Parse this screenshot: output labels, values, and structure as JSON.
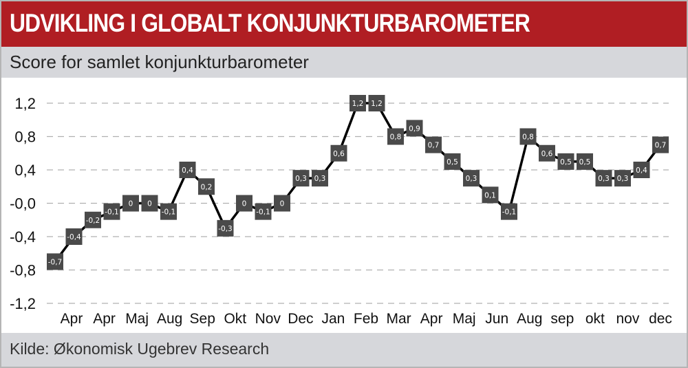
{
  "header": {
    "title": "UDVIKLING I GLOBALT KONJUNKTURBAROMETER",
    "subtitle": "Score for samlet konjunkturbarometer"
  },
  "footer": {
    "source": "Kilde: Økonomisk Ugebrev Research"
  },
  "colors": {
    "title_bar": "#b01e23",
    "band": "#d6d7db",
    "line": "#000000",
    "marker": "#4a4a4a",
    "grid": "#b0b0b0"
  },
  "chart_data": {
    "type": "line",
    "title": "UDVIKLING I GLOBALT KONJUNKTURBAROMETER",
    "subtitle": "Score for samlet konjunkturbarometer",
    "ylim": [
      -1.2,
      1.2
    ],
    "yticks": [
      1.2,
      0.8,
      0.4,
      0.0,
      -0.4,
      -0.8,
      -1.2
    ],
    "ytick_labels": [
      "1,2",
      "0,8",
      "0,4",
      "-0,0",
      "-0,4",
      "-0,8",
      "-1,2"
    ],
    "grid": true,
    "category_labels": [
      "Apr",
      "Apr",
      "Maj",
      "Aug",
      "Sep",
      "Okt",
      "Nov",
      "Dec",
      "Jan",
      "Feb",
      "Mar",
      "Apr",
      "Maj",
      "Jun",
      "Aug",
      "sep",
      "okt",
      "nov",
      "dec"
    ],
    "series": [
      {
        "values": [
          -0.7,
          -0.4,
          -0.2,
          -0.1,
          0,
          0,
          -0.1,
          0.4,
          0.2,
          -0.3,
          0,
          -0.1,
          0,
          0.3,
          0.3,
          0.6,
          1.2,
          1.2,
          0.8,
          0.9,
          0.7,
          0.5,
          0.3,
          0.1,
          -0.1,
          0.8,
          0.6,
          0.5,
          0.5,
          0.3,
          0.3,
          0.4,
          0.7
        ],
        "labels": [
          "-0,7",
          "-0,4",
          "-0,2",
          "-0,1",
          "0",
          "0",
          "-0,1",
          "0,4",
          "0,2",
          "-0,3",
          "0",
          "-0,1",
          "0",
          "0,3",
          "0,3",
          "0,6",
          "1,2",
          "1,2",
          "0,8",
          "0,9",
          "0,7",
          "0,5",
          "0,3",
          "0,1",
          "-0,1",
          "0,8",
          "0,6",
          "0,5",
          "0,5",
          "0,3",
          "0,3",
          "0,4",
          "0,7"
        ]
      }
    ]
  }
}
